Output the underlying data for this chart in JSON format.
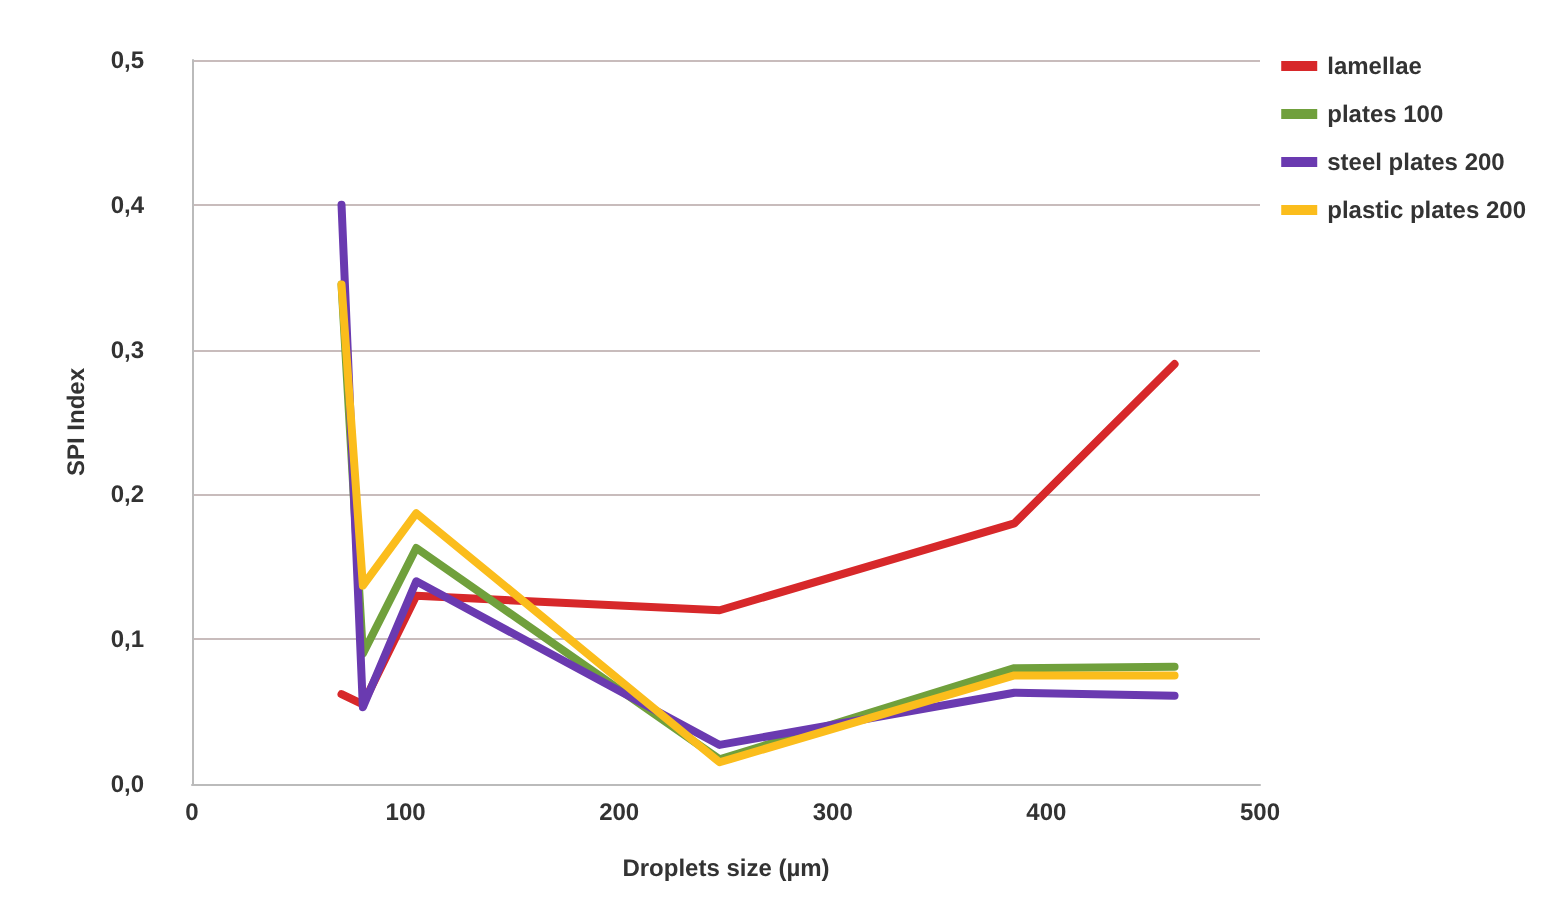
{
  "chart_data": {
    "type": "line",
    "xlabel": "Droplets size (µm)",
    "ylabel": "SPI Index",
    "series": [
      {
        "name": "lamellae",
        "color": "#d7282a",
        "x": [
          70,
          80,
          105,
          247,
          385,
          460
        ],
        "values": [
          0.062,
          0.055,
          0.13,
          0.12,
          0.18,
          0.29
        ]
      },
      {
        "name": "plates 100",
        "color": "#70a03c",
        "x": [
          70,
          80,
          105,
          247,
          385,
          460
        ],
        "values": [
          0.345,
          0.09,
          0.163,
          0.017,
          0.08,
          0.081
        ]
      },
      {
        "name": "steel plates 200",
        "color": "#6a3ab0",
        "x": [
          70,
          80,
          105,
          247,
          385,
          460
        ],
        "values": [
          0.4,
          0.053,
          0.14,
          0.027,
          0.063,
          0.061
        ]
      },
      {
        "name": "plastic plates 200",
        "color": "#fbbd1c",
        "x": [
          70,
          80,
          105,
          247,
          385,
          460
        ],
        "values": [
          0.345,
          0.137,
          0.187,
          0.015,
          0.075,
          0.075
        ]
      }
    ],
    "xlim": [
      0,
      500
    ],
    "xticks": [
      0,
      100,
      200,
      300,
      400,
      500
    ],
    "ylim": [
      0,
      0.5
    ],
    "yticks": [
      {
        "value": 0,
        "label": "0,0"
      },
      {
        "value": 0.1,
        "label": "0,1"
      },
      {
        "value": 0.2,
        "label": "0,2"
      },
      {
        "value": 0.3,
        "label": "0,3"
      },
      {
        "value": 0.4,
        "label": "0,4"
      },
      {
        "value": 0.5,
        "label": "0,5"
      }
    ],
    "grid": "y",
    "legend": "top right",
    "marker": "none",
    "line_style": "solid"
  }
}
